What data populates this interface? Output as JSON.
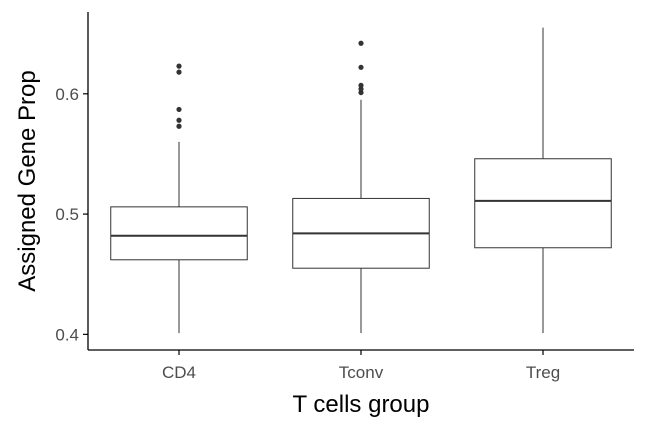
{
  "chart_data": {
    "type": "boxplot",
    "title": "",
    "xlabel": "T cells group",
    "ylabel": "Assigned Gene Prop",
    "categories": [
      "CD4",
      "Tconv",
      "Treg"
    ],
    "ylim": [
      0.387,
      0.668
    ],
    "yticks": [
      0.4,
      0.5,
      0.6
    ],
    "ytick_labels": [
      "0.4",
      "0.5",
      "0.6"
    ],
    "grid": false,
    "legend": "none",
    "colors": {
      "box_fill": "#ffffff",
      "box_stroke": "#333333",
      "axis": "#000000",
      "text": "#4d4d4d",
      "title_text": "#000000"
    },
    "boxes": [
      {
        "group": "CD4",
        "whisker_low": 0.401,
        "q1": 0.462,
        "median": 0.482,
        "q3": 0.506,
        "whisker_high": 0.56,
        "outliers": [
          0.573,
          0.578,
          0.587,
          0.618,
          0.623
        ]
      },
      {
        "group": "Tconv",
        "whisker_low": 0.401,
        "q1": 0.455,
        "median": 0.484,
        "q3": 0.513,
        "whisker_high": 0.595,
        "outliers": [
          0.601,
          0.604,
          0.607,
          0.622,
          0.642
        ]
      },
      {
        "group": "Treg",
        "whisker_low": 0.401,
        "q1": 0.472,
        "median": 0.511,
        "q3": 0.546,
        "whisker_high": 0.655,
        "outliers": []
      }
    ]
  }
}
